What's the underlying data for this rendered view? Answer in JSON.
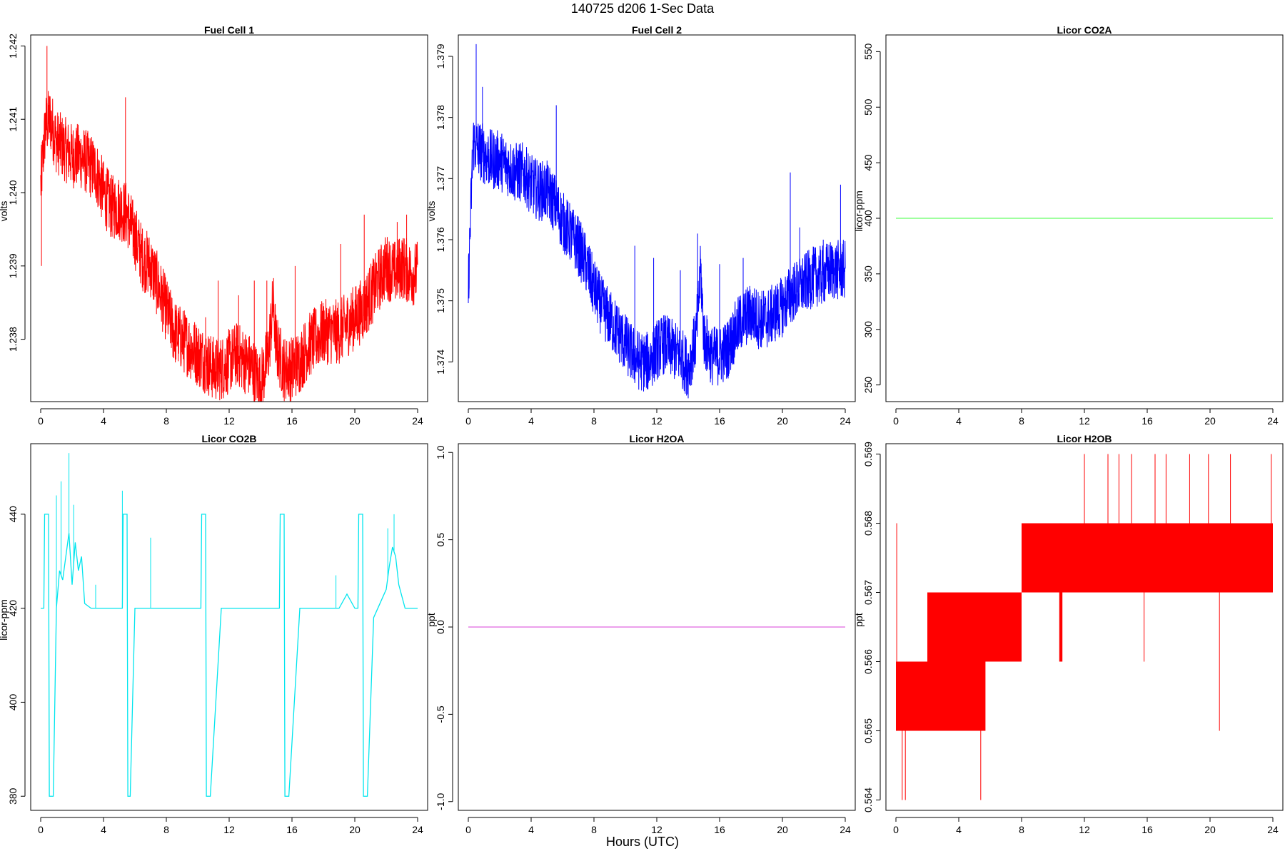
{
  "title": "140725   d206   1-Sec Data",
  "xlabel": "Hours (UTC)",
  "chart_data": [
    {
      "type": "line",
      "title": "Fuel Cell 1",
      "ylabel": "volts",
      "color": "#ff0000",
      "xlim": [
        0,
        24
      ],
      "ylim": [
        1.23715,
        1.24215
      ],
      "xticks": [
        0,
        4,
        8,
        12,
        16,
        20,
        24
      ],
      "yticks": [
        1.238,
        1.239,
        1.24,
        1.241,
        1.242
      ],
      "ytick_labels": [
        "1.238",
        "1.239",
        "1.240",
        "1.241",
        "1.242"
      ],
      "x": [
        0,
        0.3,
        0.6,
        1.0,
        1.5,
        2.0,
        2.5,
        3.0,
        3.5,
        4.0,
        4.5,
        5.0,
        5.5,
        6.0,
        6.5,
        7.0,
        7.5,
        8.0,
        8.5,
        9.0,
        9.5,
        10.0,
        10.5,
        11.0,
        11.5,
        12.0,
        12.5,
        13.0,
        13.5,
        14.0,
        14.5,
        14.8,
        15.0,
        15.5,
        16.0,
        16.5,
        17.0,
        17.5,
        18.0,
        18.5,
        19.0,
        19.5,
        20.0,
        20.5,
        21.0,
        21.5,
        22.0,
        22.5,
        23.0,
        23.5,
        24.0
      ],
      "y": [
        1.2401,
        1.2409,
        1.241,
        1.2407,
        1.2406,
        1.2405,
        1.2405,
        1.2404,
        1.2403,
        1.24,
        1.2398,
        1.2398,
        1.2397,
        1.2394,
        1.2391,
        1.239,
        1.2387,
        1.2384,
        1.2381,
        1.238,
        1.2379,
        1.2378,
        1.2377,
        1.2376,
        1.2376,
        1.2377,
        1.2378,
        1.2377,
        1.2376,
        1.2374,
        1.2378,
        1.2385,
        1.2379,
        1.2376,
        1.2376,
        1.2377,
        1.2379,
        1.238,
        1.2381,
        1.2381,
        1.2381,
        1.2382,
        1.2383,
        1.2384,
        1.2386,
        1.2388,
        1.239,
        1.2389,
        1.239,
        1.2389,
        1.2389
      ],
      "band": 0.00045,
      "spikes": [
        [
          0.05,
          1.239
        ],
        [
          0.4,
          1.242
        ],
        [
          5.4,
          1.2413
        ],
        [
          10.5,
          1.2383
        ],
        [
          11.3,
          1.2388
        ],
        [
          12.6,
          1.2386
        ],
        [
          13.6,
          1.2388
        ],
        [
          14.4,
          1.2388
        ],
        [
          16.2,
          1.239
        ],
        [
          19.1,
          1.2393
        ],
        [
          20.6,
          1.2397
        ],
        [
          22.7,
          1.2396
        ],
        [
          23.3,
          1.2397
        ]
      ]
    },
    {
      "type": "line",
      "title": "Fuel Cell 2",
      "ylabel": "volts",
      "color": "#0000ff",
      "xlim": [
        0,
        24
      ],
      "ylim": [
        1.37335,
        1.37935
      ],
      "xticks": [
        0,
        4,
        8,
        12,
        16,
        20,
        24
      ],
      "yticks": [
        1.374,
        1.375,
        1.376,
        1.377,
        1.378,
        1.379
      ],
      "ytick_labels": [
        "1.374",
        "1.375",
        "1.376",
        "1.377",
        "1.378",
        "1.379"
      ],
      "x": [
        0,
        0.3,
        0.6,
        1.0,
        1.5,
        2.0,
        2.5,
        3.0,
        3.5,
        4.0,
        4.5,
        5.0,
        5.5,
        6.0,
        6.5,
        7.0,
        7.5,
        8.0,
        8.5,
        9.0,
        9.5,
        10.0,
        10.5,
        11.0,
        11.5,
        12.0,
        12.5,
        13.0,
        13.5,
        14.0,
        14.5,
        14.8,
        15.0,
        15.5,
        16.0,
        16.5,
        17.0,
        17.5,
        18.0,
        18.5,
        19.0,
        19.5,
        20.0,
        20.5,
        21.0,
        21.5,
        22.0,
        22.5,
        23.0,
        23.5,
        24.0
      ],
      "y": [
        1.3752,
        1.3776,
        1.3775,
        1.3774,
        1.3773,
        1.3773,
        1.3772,
        1.3771,
        1.3771,
        1.3769,
        1.3768,
        1.3768,
        1.3766,
        1.3763,
        1.3761,
        1.3759,
        1.3756,
        1.3752,
        1.3749,
        1.3747,
        1.3745,
        1.3743,
        1.3741,
        1.374,
        1.374,
        1.3742,
        1.3743,
        1.3742,
        1.3741,
        1.3739,
        1.3744,
        1.3755,
        1.3744,
        1.3741,
        1.3741,
        1.3742,
        1.3745,
        1.3747,
        1.3748,
        1.3747,
        1.3747,
        1.3748,
        1.3749,
        1.3751,
        1.3752,
        1.3753,
        1.3754,
        1.3754,
        1.3755,
        1.3755,
        1.3755
      ],
      "band": 0.0005,
      "spikes": [
        [
          0.05,
          1.3752
        ],
        [
          0.5,
          1.3792
        ],
        [
          0.9,
          1.3785
        ],
        [
          5.6,
          1.3782
        ],
        [
          10.6,
          1.3759
        ],
        [
          11.8,
          1.3757
        ],
        [
          13.5,
          1.3755
        ],
        [
          14.6,
          1.3761
        ],
        [
          16.0,
          1.3756
        ],
        [
          17.5,
          1.3757
        ],
        [
          20.5,
          1.3771
        ],
        [
          21.1,
          1.3762
        ],
        [
          22.6,
          1.376
        ],
        [
          23.7,
          1.3769
        ]
      ]
    },
    {
      "type": "line",
      "title": "Licor CO2A",
      "ylabel": "licor-ppm",
      "color": "#66ff66",
      "xlim": [
        0,
        24
      ],
      "ylim": [
        235,
        565
      ],
      "xticks": [
        0,
        4,
        8,
        12,
        16,
        20,
        24
      ],
      "yticks": [
        250,
        300,
        350,
        400,
        450,
        500,
        550
      ],
      "ytick_labels": [
        "250",
        "300",
        "350",
        "400",
        "450",
        "500",
        "550"
      ],
      "x": [
        0,
        24
      ],
      "y": [
        400,
        400
      ],
      "band": 0,
      "spikes": []
    },
    {
      "type": "line",
      "title": "Licor CO2B",
      "ylabel": "licor-ppm",
      "color": "#00e5ee",
      "xlim": [
        0,
        24
      ],
      "ylim": [
        377,
        455
      ],
      "xticks": [
        0,
        4,
        8,
        12,
        16,
        20,
        24
      ],
      "yticks": [
        380,
        400,
        420,
        440
      ],
      "ytick_labels": [
        "380",
        "400",
        "420",
        "440"
      ],
      "x": [
        0,
        0.2,
        0.25,
        0.3,
        0.35,
        0.5,
        0.55,
        0.8,
        1.0,
        1.2,
        1.4,
        1.6,
        1.8,
        2.0,
        2.2,
        2.4,
        2.6,
        2.8,
        3.2,
        3.5,
        4.0,
        4.5,
        5.0,
        5.2,
        5.25,
        5.35,
        5.4,
        5.5,
        5.55,
        5.7,
        6.0,
        6.5,
        7.0,
        7.5,
        8.0,
        9.0,
        10.0,
        10.2,
        10.25,
        10.35,
        10.4,
        10.5,
        10.55,
        10.8,
        11.5,
        12.0,
        13.0,
        14.0,
        15.0,
        15.2,
        15.25,
        15.35,
        15.4,
        15.5,
        15.55,
        15.8,
        16.5,
        17.5,
        18.5,
        19.0,
        19.5,
        20.0,
        20.2,
        20.25,
        20.35,
        20.4,
        20.5,
        20.55,
        20.8,
        21.2,
        21.6,
        22.0,
        22.2,
        22.4,
        22.6,
        22.8,
        23.2,
        23.6,
        24.0
      ],
      "y": [
        420,
        420,
        440,
        440,
        440,
        440,
        380,
        380,
        420,
        428,
        426,
        431,
        436,
        425,
        434,
        428,
        431,
        421,
        420,
        420,
        420,
        420,
        420,
        420,
        440,
        440,
        440,
        440,
        380,
        380,
        420,
        420,
        420,
        420,
        420,
        420,
        420,
        420,
        440,
        440,
        440,
        440,
        380,
        380,
        420,
        420,
        420,
        420,
        420,
        420,
        440,
        440,
        440,
        440,
        380,
        380,
        420,
        420,
        420,
        420,
        423,
        420,
        420,
        440,
        440,
        440,
        440,
        380,
        380,
        418,
        421,
        424,
        429,
        433,
        431,
        425,
        420,
        420,
        420
      ],
      "band": 0,
      "spikes": [
        [
          1.0,
          444
        ],
        [
          1.3,
          447
        ],
        [
          1.8,
          453
        ],
        [
          2.1,
          442
        ],
        [
          3.5,
          425
        ],
        [
          5.2,
          445
        ],
        [
          7.0,
          435
        ],
        [
          18.8,
          427
        ],
        [
          22.1,
          437
        ],
        [
          22.5,
          440
        ]
      ]
    },
    {
      "type": "line",
      "title": "Licor H2OA",
      "ylabel": "ppt",
      "color": "#e066e0",
      "xlim": [
        0,
        24
      ],
      "ylim": [
        -1.05,
        1.05
      ],
      "xticks": [
        0,
        4,
        8,
        12,
        16,
        20,
        24
      ],
      "yticks": [
        -1.0,
        -0.5,
        0.0,
        0.5,
        1.0
      ],
      "ytick_labels": [
        "-1.0",
        "-0.5",
        "0.0",
        "0.5",
        "1.0"
      ],
      "x": [
        0,
        24
      ],
      "y": [
        0,
        0
      ],
      "band": 0,
      "spikes": []
    },
    {
      "type": "step",
      "title": "Licor H2OB",
      "ylabel": "ppt",
      "color": "#ff0000",
      "xlim": [
        0,
        24
      ],
      "ylim": [
        0.56385,
        0.56915
      ],
      "xticks": [
        0,
        4,
        8,
        12,
        16,
        20,
        24
      ],
      "yticks": [
        0.564,
        0.565,
        0.566,
        0.567,
        0.568,
        0.569
      ],
      "ytick_labels": [
        "0.564",
        "0.565",
        "0.566",
        "0.567",
        "0.568",
        "0.569"
      ],
      "bands": [
        [
          0.0,
          2.0,
          0.565,
          0.566
        ],
        [
          2.0,
          5.7,
          0.565,
          0.567
        ],
        [
          2.0,
          8.0,
          0.566,
          0.567
        ],
        [
          8.0,
          24.0,
          0.567,
          0.568
        ],
        [
          10.4,
          10.6,
          0.566,
          0.568
        ]
      ],
      "spikes": [
        [
          0.05,
          0.565,
          0.568
        ],
        [
          0.4,
          0.564,
          0.566
        ],
        [
          0.6,
          0.564,
          0.566
        ],
        [
          5.4,
          0.564,
          0.566
        ],
        [
          12.0,
          0.568,
          0.569
        ],
        [
          13.5,
          0.568,
          0.569
        ],
        [
          14.2,
          0.568,
          0.569
        ],
        [
          15.0,
          0.568,
          0.569
        ],
        [
          15.8,
          0.566,
          0.567
        ],
        [
          16.5,
          0.568,
          0.569
        ],
        [
          17.2,
          0.568,
          0.569
        ],
        [
          18.7,
          0.568,
          0.569
        ],
        [
          19.9,
          0.568,
          0.569
        ],
        [
          20.6,
          0.565,
          0.567
        ],
        [
          21.3,
          0.568,
          0.569
        ],
        [
          23.9,
          0.568,
          0.569
        ]
      ]
    }
  ]
}
